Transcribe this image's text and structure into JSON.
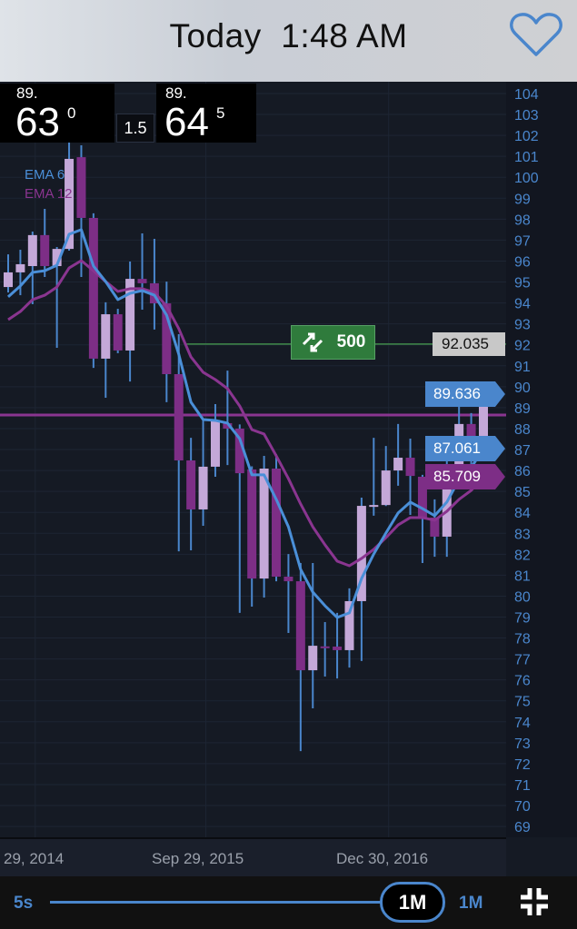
{
  "header": {
    "title": "Today  1:48 AM",
    "favorite_icon": "heart-outline-icon",
    "accent": "#4a86cc"
  },
  "quotes": {
    "bid": {
      "prefix": "89.",
      "big": "63",
      "sup": "0"
    },
    "spread": "1.5",
    "ask": {
      "prefix": "89.",
      "big": "64",
      "sup": "5"
    }
  },
  "trade_button": {
    "icon": "swap-arrows-icon",
    "label": "500",
    "color": "#2f7b3c"
  },
  "price_tags": {
    "order": "92.035",
    "last": "89.636",
    "ema6": "87.061",
    "ema12": "85.709"
  },
  "timeframe": {
    "min_label": "5s",
    "selected": "1M",
    "max_label": "1M",
    "compress_icon": "compress-icon"
  },
  "chart_data": {
    "type": "candlestick",
    "indicators": [
      {
        "name": "EMA 6",
        "color": "#4a8fd8"
      },
      {
        "name": "EMA 12",
        "color": "#8a3590"
      }
    ],
    "y_ticks": [
      104,
      103,
      102,
      101,
      100,
      99,
      98,
      97,
      96,
      95,
      94,
      93,
      92,
      91,
      90,
      89,
      88,
      87,
      86,
      85,
      84,
      83,
      82,
      81,
      80,
      79,
      78,
      77,
      76,
      75,
      74,
      73,
      72,
      71,
      70,
      69
    ],
    "ylim": [
      68.5,
      104.7
    ],
    "x_labels": [
      "29, 2014",
      "Sep 29, 2015",
      "Dec 30, 2016"
    ],
    "x_label_candle_index": [
      2,
      16,
      31
    ],
    "bullish_color": "#c4a8d8",
    "bearish_color": "#7d2e86",
    "wick_color": "#4a86cc",
    "candles": [
      [
        94.76,
        96.32,
        94.5,
        95.46
      ],
      [
        95.46,
        96.54,
        94.37,
        95.85
      ],
      [
        95.76,
        97.41,
        93.94,
        97.24
      ],
      [
        97.24,
        98.49,
        95.24,
        95.76
      ],
      [
        95.76,
        96.67,
        91.86,
        96.58
      ],
      [
        96.58,
        101.75,
        96.5,
        100.88
      ],
      [
        100.96,
        101.53,
        95.24,
        98.06
      ],
      [
        98.06,
        98.28,
        90.9,
        91.34
      ],
      [
        91.34,
        94.03,
        89.47,
        93.46
      ],
      [
        93.46,
        93.72,
        91.6,
        91.73
      ],
      [
        91.73,
        95.98,
        90.25,
        95.15
      ],
      [
        95.15,
        97.32,
        93.68,
        94.94
      ],
      [
        94.94,
        97.06,
        92.73,
        93.98
      ],
      [
        93.98,
        95.02,
        89.26,
        90.6
      ],
      [
        90.6,
        92.51,
        82.14,
        86.48
      ],
      [
        86.48,
        87.56,
        82.19,
        84.14
      ],
      [
        84.14,
        88.39,
        83.36,
        86.18
      ],
      [
        86.18,
        89.17,
        85.7,
        88.39
      ],
      [
        88.26,
        90.77,
        86.26,
        88.0
      ],
      [
        88.0,
        88.2,
        79.2,
        85.87
      ],
      [
        86.05,
        86.2,
        79.5,
        80.84
      ],
      [
        80.84,
        86.7,
        79.93,
        86.09
      ],
      [
        86.09,
        86.78,
        80.71,
        80.93
      ],
      [
        80.93,
        82.01,
        78.24,
        80.71
      ],
      [
        80.71,
        81.58,
        72.6,
        76.46
      ],
      [
        76.46,
        81.58,
        74.64,
        77.63
      ],
      [
        77.6,
        78.76,
        76.16,
        77.59
      ],
      [
        77.59,
        79.2,
        76.07,
        77.42
      ],
      [
        77.42,
        80.37,
        76.59,
        79.76
      ],
      [
        79.76,
        84.7,
        76.9,
        84.31
      ],
      [
        84.31,
        87.56,
        83.84,
        84.35
      ],
      [
        84.35,
        87.17,
        84.3,
        86.0
      ],
      [
        86.0,
        88.22,
        85.27,
        86.61
      ],
      [
        86.61,
        87.52,
        83.88,
        85.74
      ],
      [
        85.7,
        85.79,
        81.58,
        83.75
      ],
      [
        83.75,
        84.62,
        81.88,
        82.84
      ],
      [
        82.84,
        86.57,
        81.88,
        86.18
      ],
      [
        86.18,
        90.17,
        85.92,
        88.22
      ],
      [
        88.22,
        88.74,
        85.57,
        87.48
      ],
      [
        87.48,
        89.73,
        86.65,
        89.636
      ]
    ],
    "ema6": [
      94.29,
      94.81,
      95.46,
      95.54,
      95.8,
      97.28,
      97.5,
      95.76,
      95.02,
      94.16,
      94.46,
      94.59,
      94.37,
      93.42,
      91.55,
      89.26,
      88.43,
      88.39,
      88.26,
      87.52,
      85.79,
      85.79,
      84.62,
      83.31,
      81.28,
      80.19,
      79.54,
      78.98,
      79.2,
      80.84,
      82.01,
      83.01,
      83.97,
      84.49,
      84.18,
      83.84,
      84.49,
      85.57,
      86.13,
      87.061
    ],
    "ema12": [
      93.2,
      93.59,
      94.16,
      94.37,
      94.76,
      95.67,
      96.02,
      95.54,
      95.02,
      94.55,
      94.68,
      94.68,
      94.5,
      93.85,
      92.77,
      91.42,
      90.69,
      90.34,
      89.91,
      89.08,
      87.95,
      87.74,
      86.7,
      85.61,
      84.4,
      83.31,
      82.45,
      81.67,
      81.45,
      81.8,
      82.23,
      82.79,
      83.4,
      83.75,
      83.75,
      83.62,
      84.05,
      84.62,
      85.05,
      85.709
    ],
    "horizontal_lines": [
      {
        "price": 92.035,
        "color": "#3f8a4a"
      },
      {
        "price": 88.65,
        "color": "#8a3590"
      }
    ],
    "grid": true
  }
}
